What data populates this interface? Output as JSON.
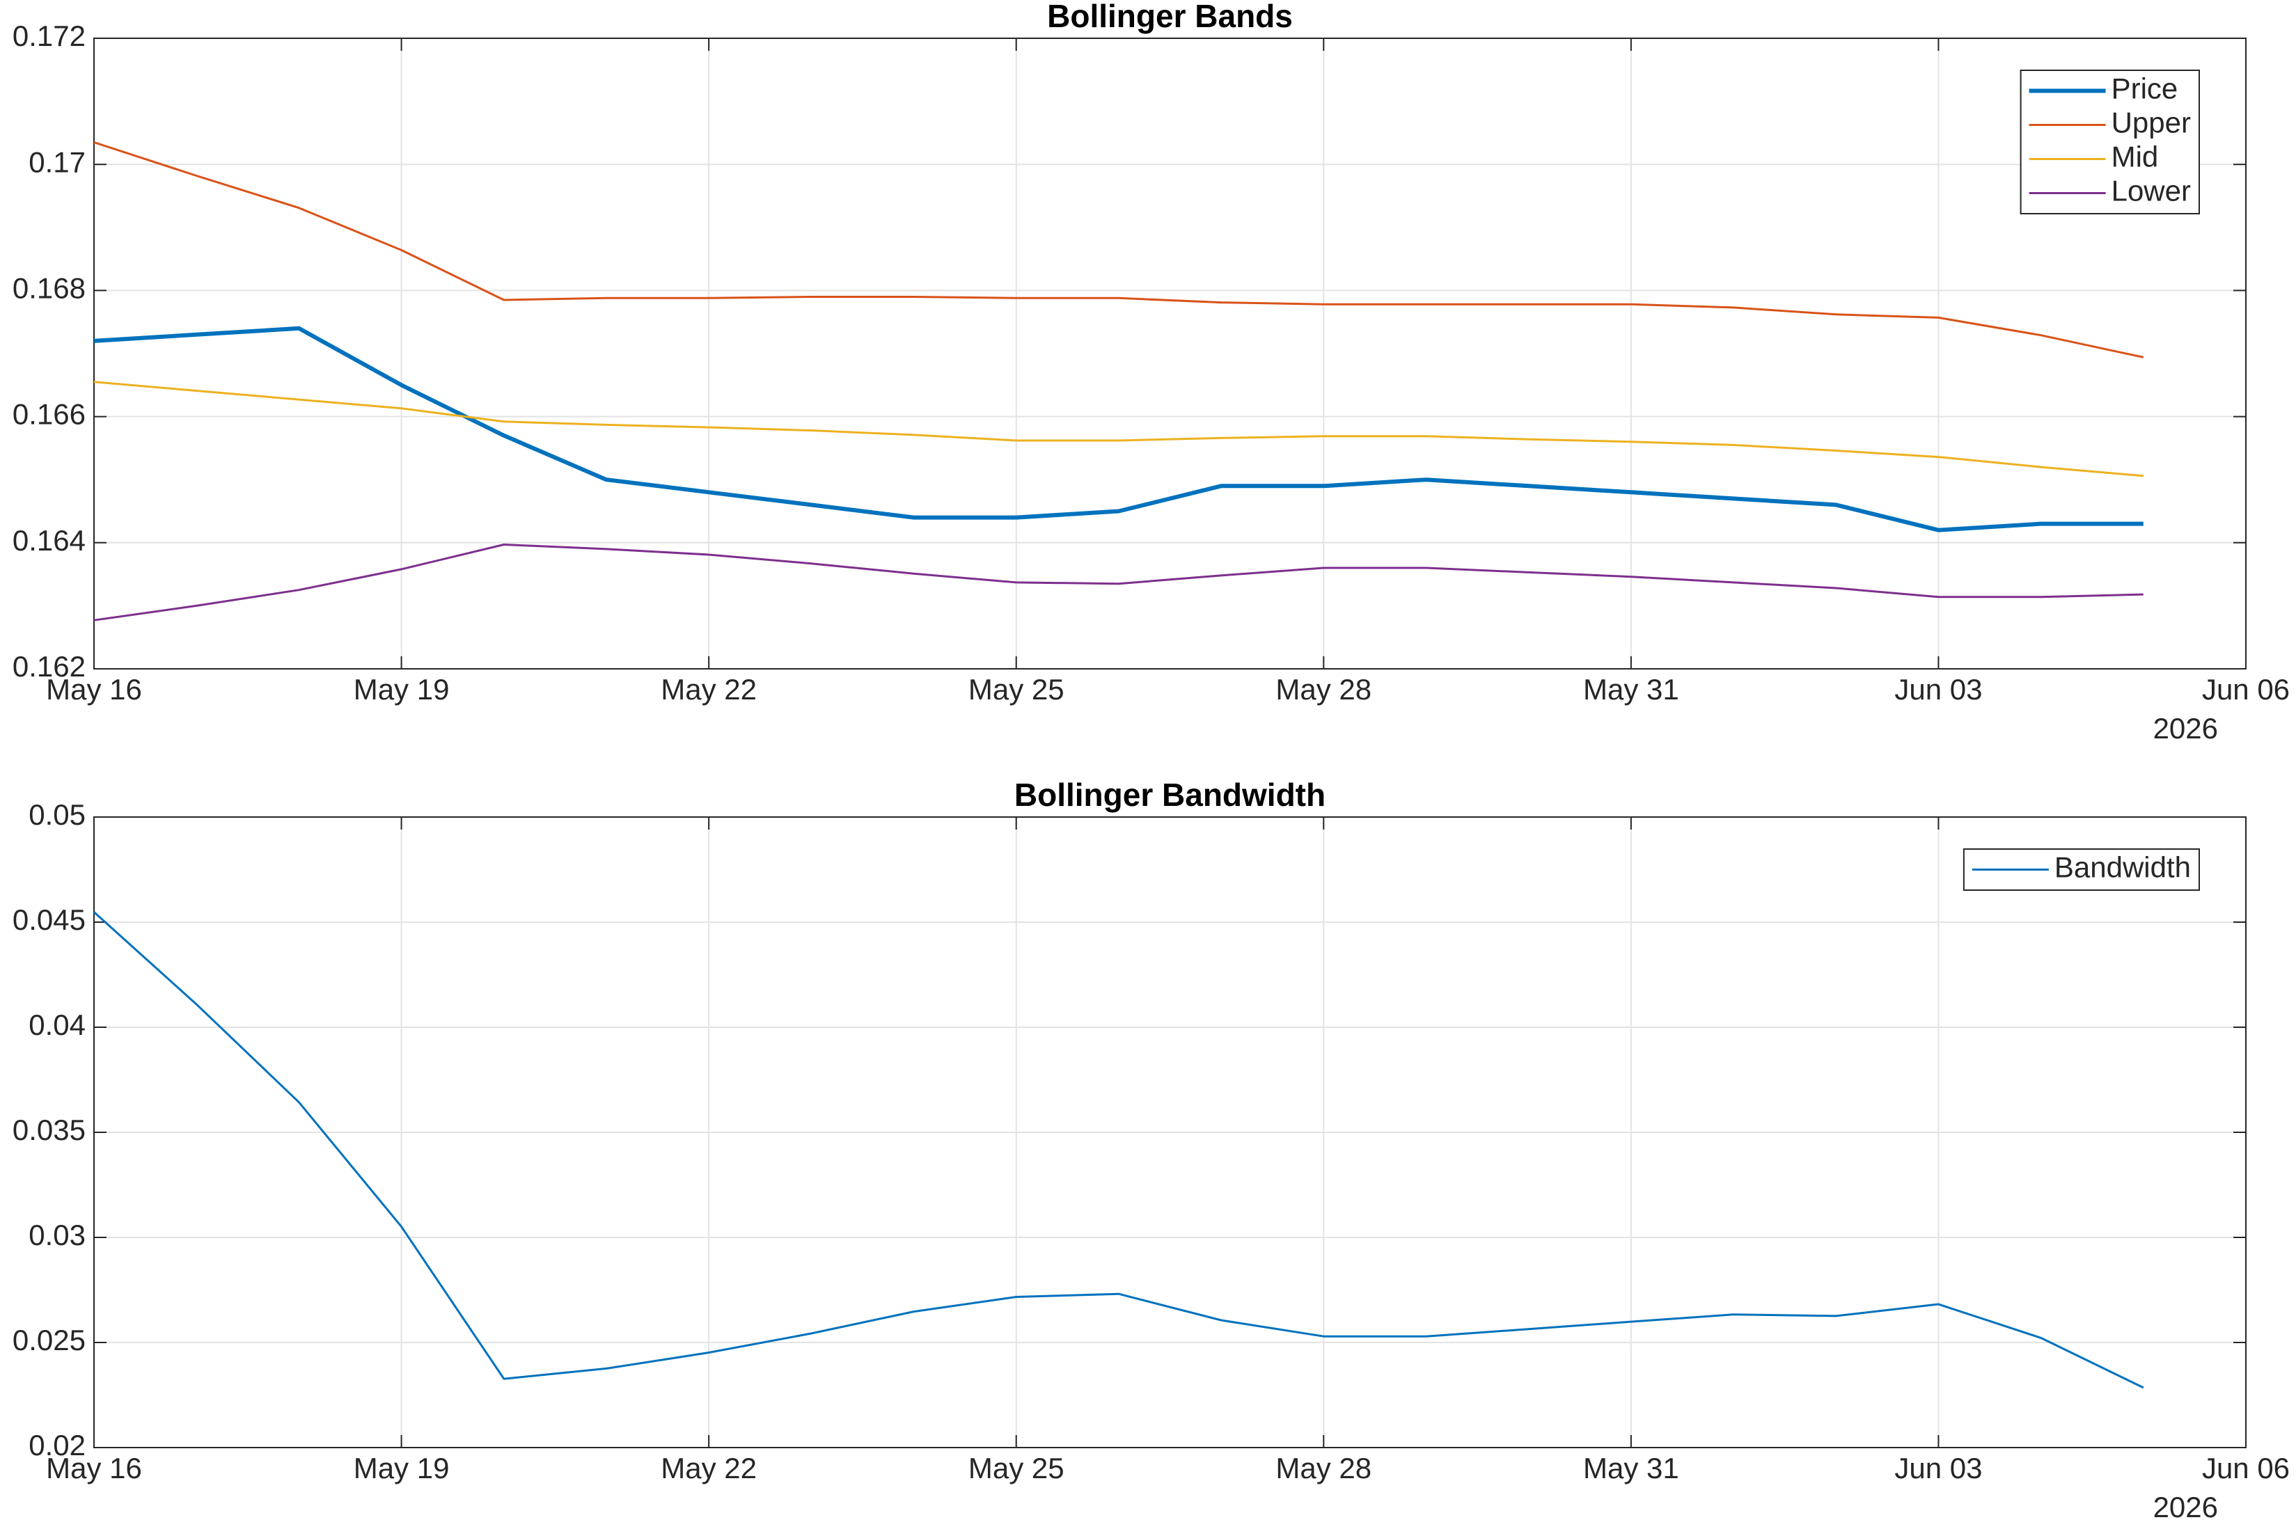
{
  "chart_data": [
    {
      "type": "line",
      "title": "Bollinger Bands",
      "grid": true,
      "legend": "top-right",
      "x_secondary_label": "2026",
      "x": [
        "2026-05-16",
        "2026-05-17",
        "2026-05-18",
        "2026-05-19",
        "2026-05-20",
        "2026-05-21",
        "2026-05-22",
        "2026-05-23",
        "2026-05-24",
        "2026-05-25",
        "2026-05-26",
        "2026-05-27",
        "2026-05-28",
        "2026-05-29",
        "2026-05-30",
        "2026-05-31",
        "2026-06-01",
        "2026-06-02",
        "2026-06-03",
        "2026-06-04",
        "2026-06-05"
      ],
      "xlim": [
        "2026-05-16",
        "2026-06-06"
      ],
      "xticks": [
        {
          "value": "2026-05-16",
          "label": "May 16"
        },
        {
          "value": "2026-05-19",
          "label": "May 19"
        },
        {
          "value": "2026-05-22",
          "label": "May 22"
        },
        {
          "value": "2026-05-25",
          "label": "May 25"
        },
        {
          "value": "2026-05-28",
          "label": "May 28"
        },
        {
          "value": "2026-05-31",
          "label": "May 31"
        },
        {
          "value": "2026-06-03",
          "label": "Jun 03"
        },
        {
          "value": "2026-06-06",
          "label": "Jun 06"
        }
      ],
      "ylim": [
        0.162,
        0.172
      ],
      "yticks": [
        0.162,
        0.164,
        0.166,
        0.168,
        0.17,
        0.172
      ],
      "series": [
        {
          "name": "Price",
          "color": "#0072BD",
          "line_width": 2,
          "values": [
            0.1672,
            0.1673,
            0.1674,
            0.1665,
            0.1657,
            0.165,
            0.1648,
            0.1646,
            0.1644,
            0.1644,
            0.1645,
            0.1649,
            0.1649,
            0.165,
            0.1649,
            0.1648,
            0.1647,
            0.1646,
            0.1642,
            0.1643,
            0.1643
          ]
        },
        {
          "name": "Upper",
          "color": "#D95319",
          "line_width": 1,
          "values": [
            0.17035,
            0.16982,
            0.16931,
            0.16864,
            0.16785,
            0.16788,
            0.16788,
            0.1679,
            0.1679,
            0.16788,
            0.16788,
            0.16781,
            0.16778,
            0.16778,
            0.16778,
            0.16778,
            0.16773,
            0.16762,
            0.16757,
            0.16729,
            0.16694
          ]
        },
        {
          "name": "Mid",
          "color": "#EDB120",
          "line_width": 1,
          "values": [
            0.16655,
            0.16641,
            0.16627,
            0.16613,
            0.16592,
            0.16587,
            0.16583,
            0.16578,
            0.16571,
            0.16562,
            0.16562,
            0.16566,
            0.16569,
            0.16569,
            0.16564,
            0.1656,
            0.16555,
            0.16546,
            0.16536,
            0.1652,
            0.16506
          ]
        },
        {
          "name": "Lower",
          "color": "#7E2F8E",
          "line_width": 1,
          "values": [
            0.16277,
            0.163,
            0.16325,
            0.16358,
            0.16397,
            0.1639,
            0.16381,
            0.16367,
            0.16351,
            0.16337,
            0.16335,
            0.16348,
            0.1636,
            0.1636,
            0.16353,
            0.16346,
            0.16337,
            0.16328,
            0.16314,
            0.16314,
            0.16318
          ]
        }
      ]
    },
    {
      "type": "line",
      "title": "Bollinger Bandwidth",
      "grid": true,
      "legend": "top-right",
      "x_secondary_label": "2026",
      "x": [
        "2026-05-16",
        "2026-05-17",
        "2026-05-18",
        "2026-05-19",
        "2026-05-20",
        "2026-05-21",
        "2026-05-22",
        "2026-05-23",
        "2026-05-24",
        "2026-05-25",
        "2026-05-26",
        "2026-05-27",
        "2026-05-28",
        "2026-05-29",
        "2026-05-30",
        "2026-05-31",
        "2026-06-01",
        "2026-06-02",
        "2026-06-03",
        "2026-06-04",
        "2026-06-05"
      ],
      "xlim": [
        "2026-05-16",
        "2026-06-06"
      ],
      "xticks": [
        {
          "value": "2026-05-16",
          "label": "May 16"
        },
        {
          "value": "2026-05-19",
          "label": "May 19"
        },
        {
          "value": "2026-05-22",
          "label": "May 22"
        },
        {
          "value": "2026-05-25",
          "label": "May 25"
        },
        {
          "value": "2026-05-28",
          "label": "May 28"
        },
        {
          "value": "2026-05-31",
          "label": "May 31"
        },
        {
          "value": "2026-06-03",
          "label": "Jun 03"
        },
        {
          "value": "2026-06-06",
          "label": "Jun 06"
        }
      ],
      "ylim": [
        0.02,
        0.05
      ],
      "yticks": [
        0.02,
        0.025,
        0.03,
        0.035,
        0.04,
        0.045,
        0.05
      ],
      "series": [
        {
          "name": "Bandwidth",
          "color": "#0072BD",
          "line_width": 1,
          "values": [
            0.04548,
            0.04109,
            0.03643,
            0.03051,
            0.02327,
            0.02376,
            0.02452,
            0.02543,
            0.02647,
            0.02717,
            0.02731,
            0.02606,
            0.02529,
            0.02529,
            0.02564,
            0.02599,
            0.02633,
            0.02626,
            0.02682,
            0.02522,
            0.02285
          ]
        }
      ]
    }
  ]
}
